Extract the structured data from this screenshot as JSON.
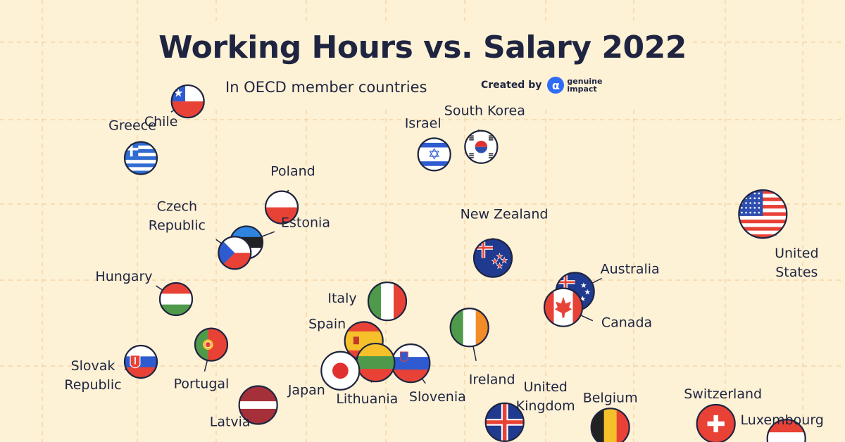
{
  "title": "Working Hours vs. Salary 2022",
  "subtitle": "In OECD member countries",
  "credit": {
    "label": "Created by",
    "brand": "genuine impact",
    "icon": "genuine-impact-logo-icon"
  },
  "colors": {
    "background": "#fdf1d6",
    "text": "#1f2540",
    "grid": "#f2c98f",
    "brand": "#2e6cf6"
  },
  "chart_data": {
    "type": "scatter",
    "title": "Working Hours vs. Salary 2022",
    "subtitle": "In OECD member countries",
    "xlabel": "",
    "ylabel": "",
    "grid": true,
    "points": [
      {
        "name": "Greece",
        "salary": 25000,
        "hours": 1886,
        "flag": "greece"
      },
      {
        "name": "Chile",
        "salary": 29000,
        "hours": 1962,
        "flag": "chile"
      },
      {
        "name": "Israel",
        "salary": 50000,
        "hours": 1891,
        "flag": "israel"
      },
      {
        "name": "South Korea",
        "salary": 54000,
        "hours": 1901,
        "flag": "south-korea"
      },
      {
        "name": "Poland",
        "salary": 37000,
        "hours": 1820,
        "flag": "poland"
      },
      {
        "name": "Estonia",
        "salary": 34000,
        "hours": 1773,
        "flag": "estonia"
      },
      {
        "name": "Czech\nRepublic",
        "salary": 33000,
        "hours": 1759,
        "flag": "czech-republic"
      },
      {
        "name": "New Zealand",
        "salary": 55000,
        "hours": 1752,
        "flag": "new-zealand"
      },
      {
        "name": "United\nStates",
        "salary": 78000,
        "hours": 1811,
        "flag": "united-states"
      },
      {
        "name": "Australia",
        "salary": 62000,
        "hours": 1707,
        "flag": "australia"
      },
      {
        "name": "Hungary",
        "salary": 28000,
        "hours": 1697,
        "flag": "hungary"
      },
      {
        "name": "Italy",
        "salary": 46000,
        "hours": 1694,
        "flag": "italy"
      },
      {
        "name": "Canada",
        "salary": 61000,
        "hours": 1686,
        "flag": "canada"
      },
      {
        "name": "Ireland",
        "salary": 53000,
        "hours": 1659,
        "flag": "ireland"
      },
      {
        "name": "Spain",
        "salary": 44000,
        "hours": 1641,
        "flag": "spain"
      },
      {
        "name": "Portugal",
        "salary": 31000,
        "hours": 1636,
        "flag": "portugal"
      },
      {
        "name": "Slovak\nRepublic",
        "salary": 25000,
        "hours": 1613,
        "flag": "slovakia"
      },
      {
        "name": "Slovenia",
        "salary": 48000,
        "hours": 1611,
        "flag": "slovenia"
      },
      {
        "name": "Lithuania",
        "salary": 45000,
        "hours": 1612,
        "flag": "lithuania"
      },
      {
        "name": "Japan",
        "salary": 42000,
        "hours": 1601,
        "flag": "japan"
      },
      {
        "name": "United\nKingdom",
        "salary": 56000,
        "hours": 1532,
        "flag": "united-kingdom"
      },
      {
        "name": "Latvia",
        "salary": 35000,
        "hours": 1555,
        "flag": "latvia"
      },
      {
        "name": "Belgium",
        "salary": 65000,
        "hours": 1525,
        "flag": "belgium"
      },
      {
        "name": "Switzerland",
        "salary": 74000,
        "hours": 1530,
        "flag": "switzerland"
      },
      {
        "name": "Luxembourg",
        "salary": 80000,
        "hours": 1510,
        "flag": "luxembourg"
      }
    ]
  }
}
